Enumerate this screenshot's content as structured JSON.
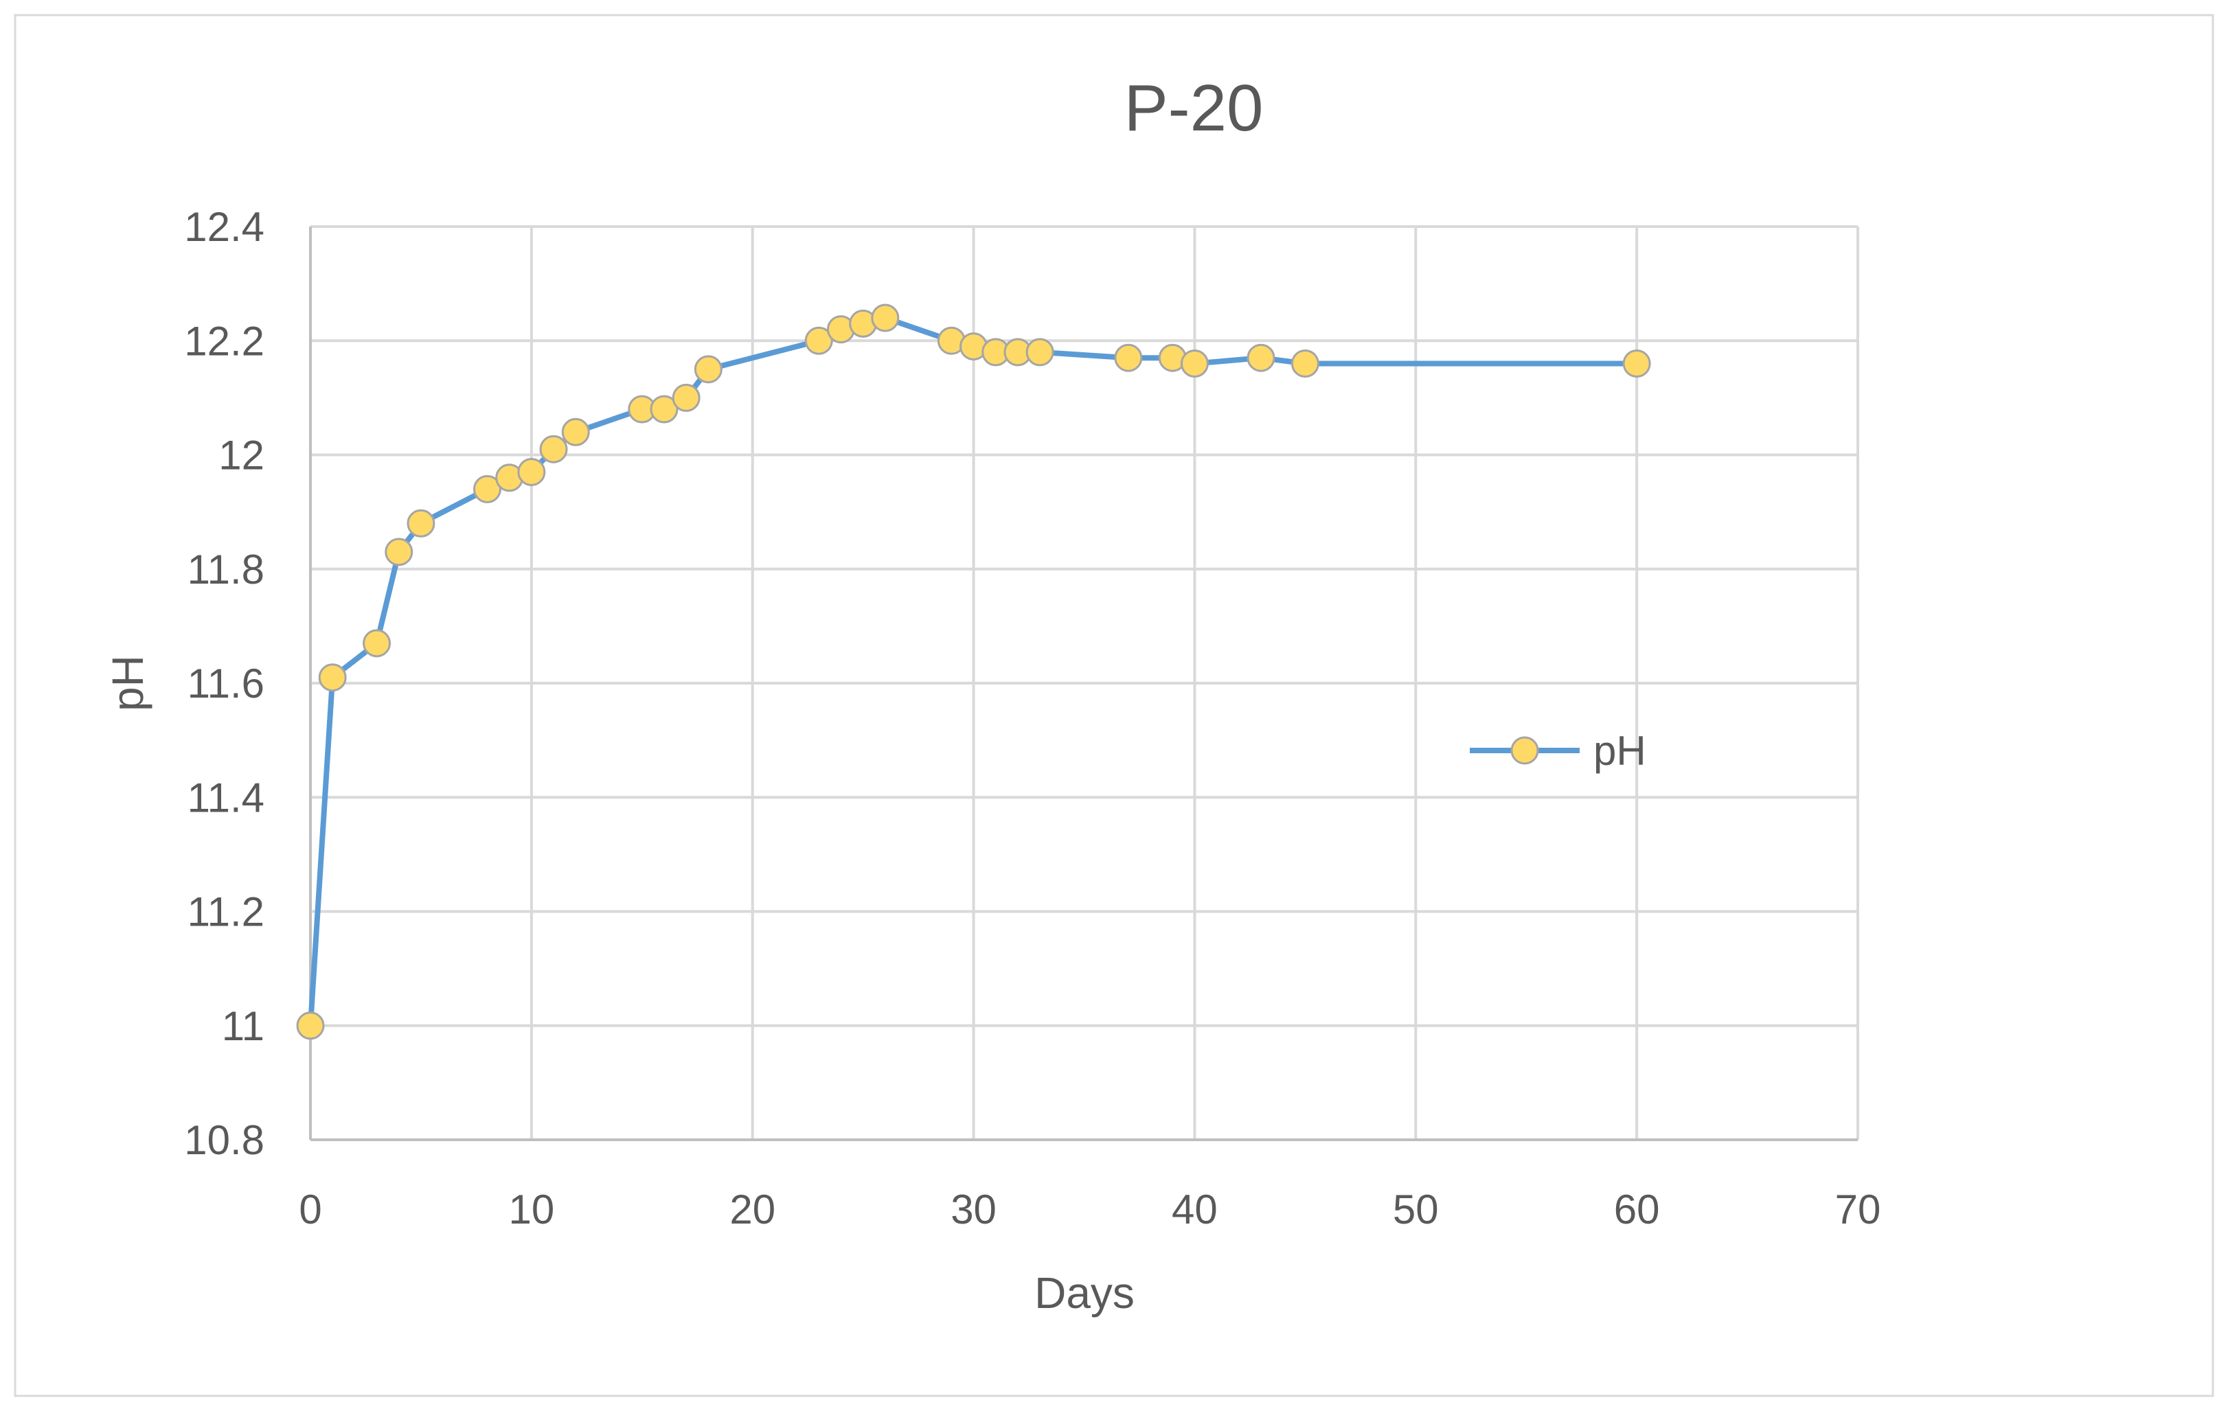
{
  "chart_data": {
    "type": "line",
    "title": "P-20",
    "xlabel": "Days",
    "ylabel": "pH",
    "xlim": [
      0,
      70
    ],
    "ylim": [
      10.8,
      12.4
    ],
    "x_ticks": [
      0,
      10,
      20,
      30,
      40,
      50,
      60,
      70
    ],
    "y_ticks": [
      10.8,
      11,
      11.2,
      11.4,
      11.6,
      11.8,
      12,
      12.2,
      12.4
    ],
    "grid": true,
    "legend": "right",
    "series": [
      {
        "name": "pH",
        "line_color": "#5b9bd5",
        "marker_color": "#ffd966",
        "marker_edge_color": "#a5a5a5",
        "x": [
          0,
          1,
          3,
          4,
          5,
          8,
          9,
          10,
          11,
          12,
          15,
          16,
          17,
          18,
          23,
          24,
          25,
          26,
          29,
          30,
          31,
          32,
          33,
          37,
          39,
          40,
          43,
          45,
          60
        ],
        "y": [
          11.0,
          11.61,
          11.67,
          11.83,
          11.88,
          11.94,
          11.96,
          11.97,
          12.01,
          12.04,
          12.08,
          12.08,
          12.1,
          12.15,
          12.2,
          12.22,
          12.23,
          12.24,
          12.2,
          12.19,
          12.18,
          12.18,
          12.18,
          12.17,
          12.17,
          12.16,
          12.17,
          12.16,
          12.16
        ]
      }
    ]
  }
}
